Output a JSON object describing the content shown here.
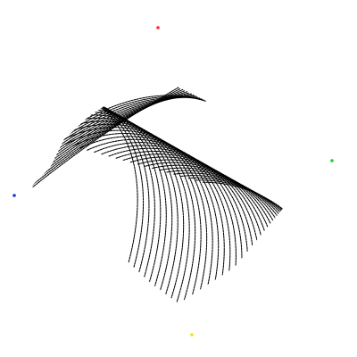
{
  "image": {
    "background_color": "#ffffff",
    "subject": "fingerprint-ridge-pattern",
    "ridge_color": "#000000",
    "markers": [
      {
        "name": "red-marker",
        "color": "#ff2a2a"
      },
      {
        "name": "green-marker",
        "color": "#22cc22"
      },
      {
        "name": "blue-marker",
        "color": "#2233cc"
      },
      {
        "name": "yellow-marker",
        "color": "#f2e500"
      }
    ]
  }
}
